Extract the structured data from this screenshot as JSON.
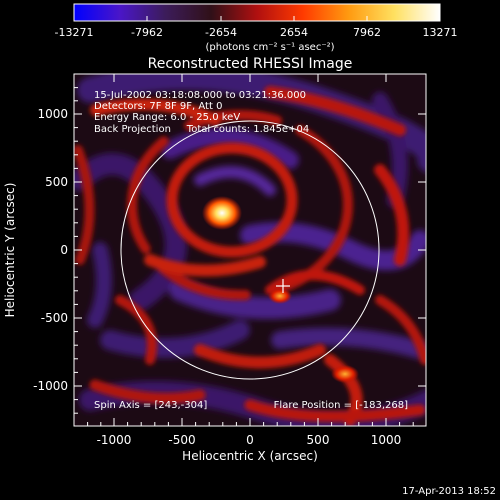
{
  "colorbar": {
    "ticks": [
      "-13271",
      "-7962",
      "-2654",
      "2654",
      "7962",
      "13271"
    ],
    "unit_label": "(photons cm⁻² s⁻¹ asec⁻²)",
    "stops": [
      "#0000ff",
      "#4a16c8",
      "#3c1c5a",
      "#301018",
      "#b01010",
      "#ff3a00",
      "#ff9a10",
      "#ffe060",
      "#ffffff"
    ]
  },
  "plot": {
    "title": "Reconstructed RHESSI Image",
    "info": [
      "15-Jul-2002 03:18:08.000 to 03:21:36.000",
      "Detectors: 7F 8F 9F, Att 0",
      "Energy Range: 6.0 - 25.0 keV",
      "Back Projection     Total counts: 1.845e+04"
    ],
    "spin_axis": "Spin Axis = [243,-304]",
    "flare_position": "Flare Position = [-183,268]",
    "xlabel": "Heliocentric X (arcsec)",
    "ylabel": "Heliocentric Y (arcsec)",
    "xticks": [
      "-1000",
      "-500",
      "0",
      "500",
      "1000"
    ],
    "yticks": [
      "1000",
      "500",
      "0",
      "-500",
      "-1000"
    ],
    "colors": {
      "frame": "#ffffff",
      "limb": "#ffffff",
      "marker": "#ffffff"
    }
  },
  "timestamp": "17-Apr-2013 18:52"
}
